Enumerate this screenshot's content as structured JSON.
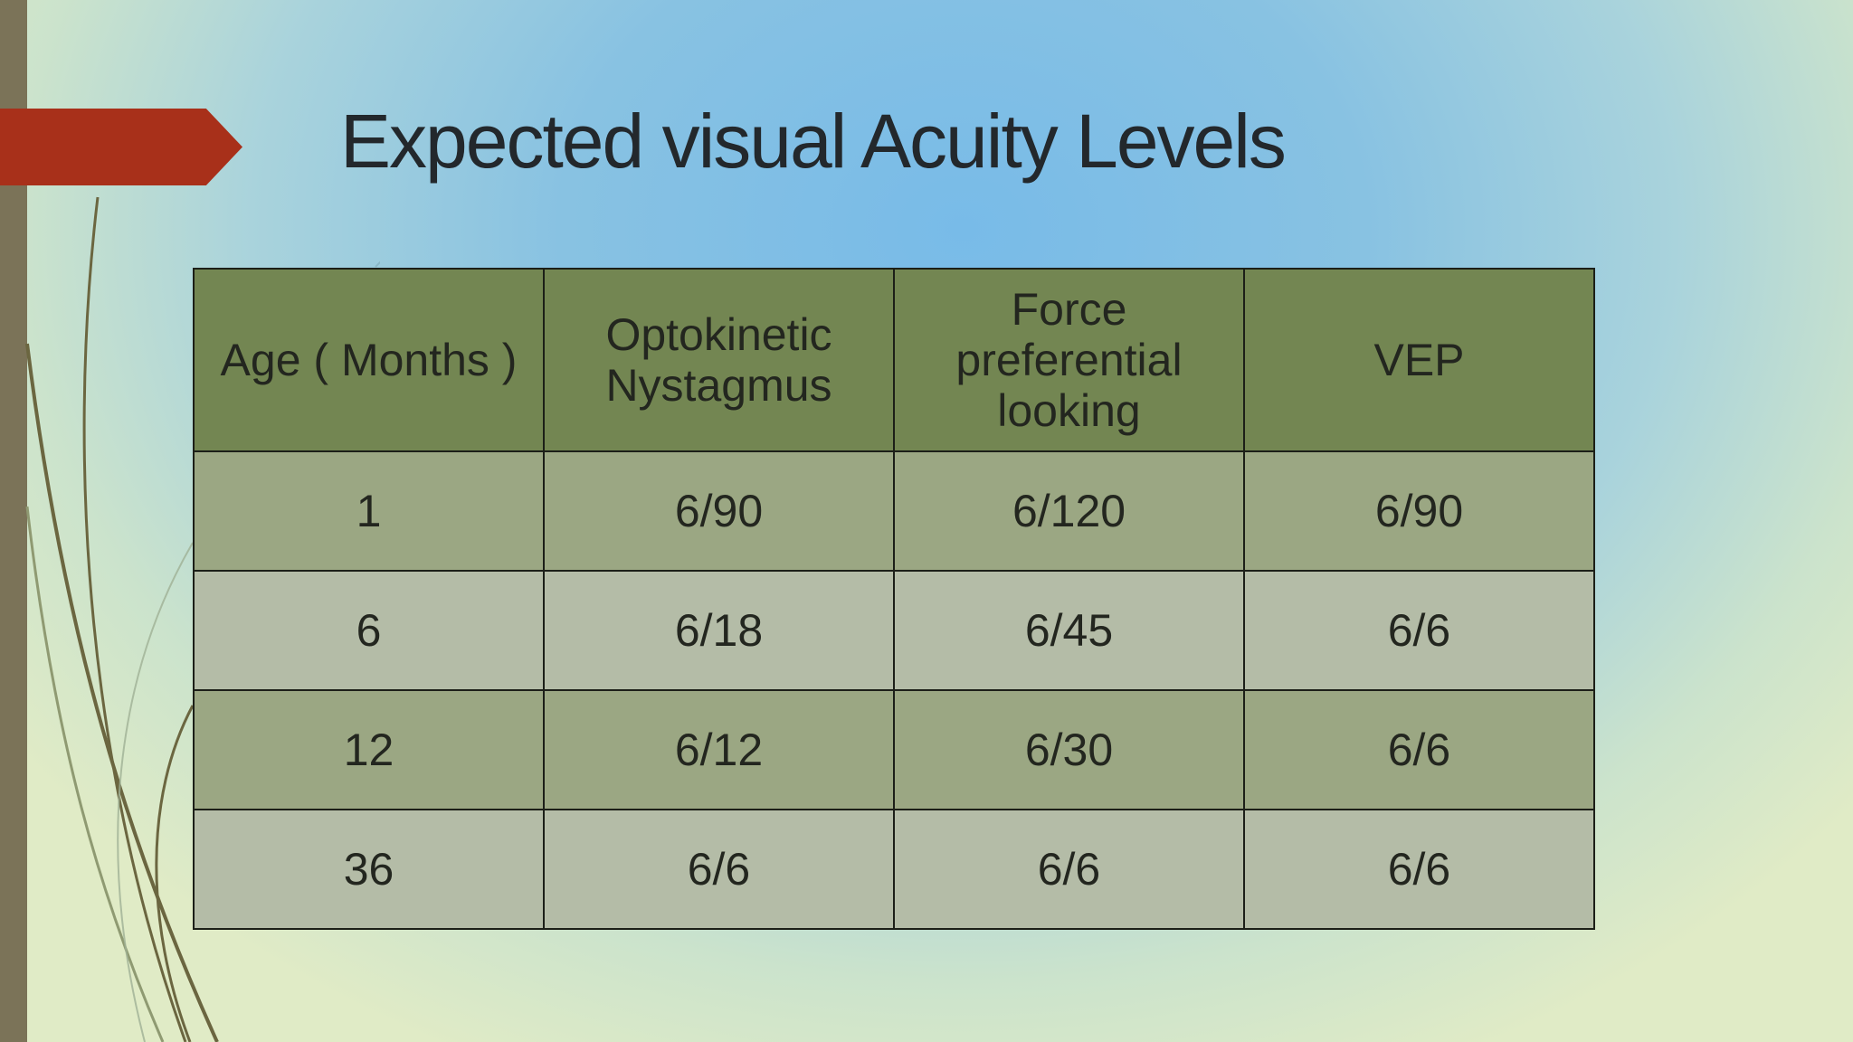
{
  "slide": {
    "title": "Expected visual Acuity Levels"
  },
  "table": {
    "headers": [
      "Age ( Months )",
      "Optokinetic Nystagmus",
      "Force preferential looking",
      "VEP"
    ],
    "rows": [
      [
        "1",
        "6/90",
        "6/120",
        "6/90"
      ],
      [
        "6",
        "6/18",
        "6/45",
        "6/6"
      ],
      [
        "12",
        "6/12",
        "6/30",
        "6/6"
      ],
      [
        "36",
        "6/6",
        "6/6",
        "6/6"
      ]
    ]
  },
  "colors": {
    "accent_arrow": "#a8301a",
    "left_bar": "#7b7358",
    "header_fill": "#738652",
    "row_dark": "#9ba783",
    "row_light": "#b4bca7",
    "swoosh": "#6b6640"
  }
}
